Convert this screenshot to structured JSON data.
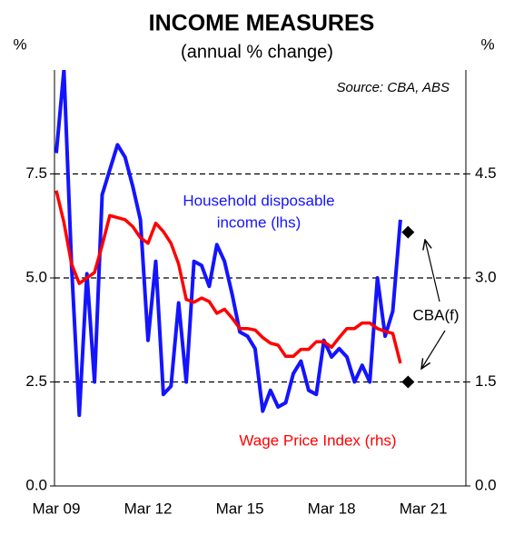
{
  "chart_data": {
    "type": "line",
    "title": "INCOME MEASURES",
    "subtitle": "(annual % change)",
    "source": "Source: CBA, ABS",
    "y_unit": "%",
    "y2_unit": "%",
    "annotations": [
      "Household disposable",
      "income (lhs)",
      "Wage Price Index (rhs)",
      "CBA(f)"
    ],
    "categories": [
      "Mar 09",
      null,
      null,
      null,
      null,
      null,
      null,
      null,
      null,
      null,
      null,
      null,
      "Mar 12",
      null,
      null,
      null,
      null,
      null,
      null,
      null,
      null,
      null,
      null,
      null,
      "Mar 15",
      null,
      null,
      null,
      null,
      null,
      null,
      null,
      null,
      null,
      null,
      null,
      "Mar 18",
      null,
      null,
      null,
      null,
      null,
      null,
      null,
      null,
      null,
      null,
      null,
      "Mar 21",
      null,
      null,
      null,
      null,
      null
    ],
    "ylim": [
      0,
      10
    ],
    "yticks": [
      {
        "value": 0,
        "label": "0.0"
      },
      2.5,
      {
        "value": 5,
        "label": "5.0"
      },
      7.5
    ],
    "y2lim": [
      0,
      6
    ],
    "y2ticks": [
      {
        "value": 0,
        "label": "0.0"
      },
      1.5,
      {
        "value": 3,
        "label": "3.0"
      },
      4.5
    ],
    "grid": true,
    "series": [
      {
        "color": "#1414ff",
        "axis": "y",
        "values": [
          8.0,
          10.0,
          5.3,
          1.7,
          5.1,
          2.5,
          7.0,
          7.6,
          8.2,
          7.9,
          7.2,
          6.4,
          3.5,
          5.4,
          2.2,
          2.4,
          4.4,
          2.5,
          5.4,
          5.3,
          4.8,
          5.8,
          5.4,
          4.6,
          3.7,
          3.6,
          3.3,
          1.8,
          2.3,
          1.9,
          2.0,
          2.7,
          3.0,
          2.3,
          2.2,
          3.5,
          3.1,
          3.3,
          3.1,
          2.5,
          2.9,
          2.5,
          5.0,
          3.6,
          4.2,
          6.4,
          null,
          null,
          null,
          null,
          null,
          null,
          null,
          null
        ]
      },
      {
        "color": "#ff0000",
        "axis": "y2",
        "values": [
          4.26,
          3.8,
          3.2,
          2.92,
          3.0,
          3.08,
          3.47,
          3.9,
          3.87,
          3.84,
          3.74,
          3.58,
          3.5,
          3.79,
          3.67,
          3.5,
          3.2,
          2.69,
          2.65,
          2.71,
          2.66,
          2.49,
          2.55,
          2.42,
          2.27,
          2.27,
          2.25,
          2.14,
          2.06,
          2.03,
          1.87,
          1.87,
          1.97,
          1.97,
          2.08,
          2.08,
          2.0,
          2.14,
          2.27,
          2.27,
          2.35,
          2.35,
          2.27,
          2.23,
          2.2,
          1.77,
          null,
          null,
          null,
          null,
          null,
          null,
          null,
          null
        ]
      },
      {
        "color": "#000000",
        "axis": "y",
        "marker": "diamond",
        "values": [
          null,
          null,
          null,
          null,
          null,
          null,
          null,
          null,
          null,
          null,
          null,
          null,
          null,
          null,
          null,
          null,
          null,
          null,
          null,
          null,
          null,
          null,
          null,
          null,
          null,
          null,
          null,
          null,
          null,
          null,
          null,
          null,
          null,
          null,
          null,
          null,
          null,
          null,
          null,
          null,
          null,
          null,
          null,
          null,
          null,
          null,
          6.1,
          null,
          null,
          null,
          null,
          null,
          null,
          null
        ]
      },
      {
        "color": "#000000",
        "axis": "y2",
        "marker": "diamond",
        "values": [
          null,
          null,
          null,
          null,
          null,
          null,
          null,
          null,
          null,
          null,
          null,
          null,
          null,
          null,
          null,
          null,
          null,
          null,
          null,
          null,
          null,
          null,
          null,
          null,
          null,
          null,
          null,
          null,
          null,
          null,
          null,
          null,
          null,
          null,
          null,
          null,
          null,
          null,
          null,
          null,
          null,
          null,
          null,
          null,
          null,
          null,
          1.5,
          null,
          null,
          null,
          null,
          null,
          null,
          null
        ]
      }
    ]
  }
}
